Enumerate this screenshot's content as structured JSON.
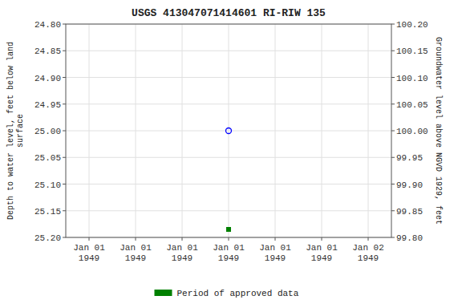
{
  "chart_data": {
    "type": "scatter",
    "title": "USGS 413047071414601 RI-RIW  135",
    "y_label": "Depth to water level, feet below land\nsurface",
    "y2_label": "Groundwater level above NGVD 1929, feet",
    "categories": [
      "Jan 01\n1949",
      "Jan 01\n1949",
      "Jan 01\n1949",
      "Jan 01\n1949",
      "Jan 01\n1949",
      "Jan 01\n1949",
      "Jan 02\n1949"
    ],
    "series": [
      {
        "color": "#0000ff",
        "marker": "circle",
        "values": [
          null,
          null,
          null,
          25.0,
          null,
          null,
          null
        ]
      },
      {
        "name": "Period of approved data",
        "color": "#008000",
        "marker": "square",
        "values": [
          null,
          null,
          null,
          25.185,
          null,
          null,
          null
        ]
      }
    ],
    "ylim": [
      25.2,
      24.8
    ],
    "yticks": [
      {
        "value": 24.8,
        "label": "24.80"
      },
      {
        "value": 24.85,
        "label": "24.85"
      },
      {
        "value": 24.9,
        "label": "24.90"
      },
      {
        "value": 24.95,
        "label": "24.95"
      },
      {
        "value": 25.0,
        "label": "25.00"
      },
      {
        "value": 25.05,
        "label": "25.05"
      },
      {
        "value": 25.1,
        "label": "25.10"
      },
      {
        "value": 25.15,
        "label": "25.15"
      },
      {
        "value": 25.2,
        "label": "25.20"
      }
    ],
    "y2lim": [
      99.8,
      100.2
    ],
    "y2ticks": [
      {
        "value": 100.2,
        "label": "100.20"
      },
      {
        "value": 100.15,
        "label": "100.15"
      },
      {
        "value": 100.1,
        "label": "100.10"
      },
      {
        "value": 100.05,
        "label": "100.05"
      },
      {
        "value": 100.0,
        "label": "100.00"
      },
      {
        "value": 99.95,
        "label": "99.95"
      },
      {
        "value": 99.9,
        "label": "99.90"
      },
      {
        "value": 99.85,
        "label": "99.85"
      },
      {
        "value": 99.8,
        "label": "99.80"
      }
    ],
    "grid": true,
    "legend": "bottom"
  }
}
